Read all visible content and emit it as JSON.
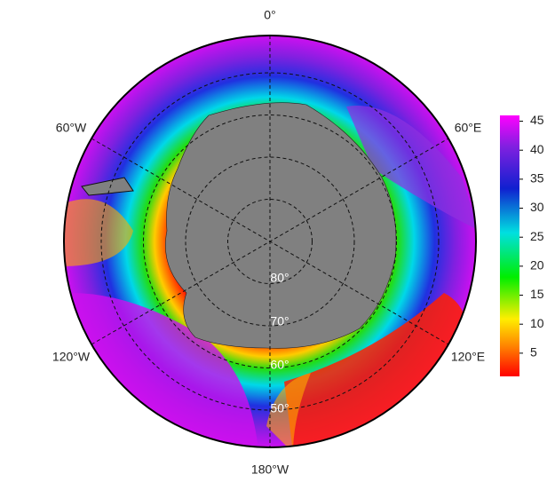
{
  "map": {
    "lon_labels": [
      "0°",
      "60°E",
      "120°E",
      "180°W",
      "120°W",
      "60°W"
    ],
    "lat_labels": [
      "80°",
      "70°",
      "60°",
      "50°"
    ]
  },
  "colorbar": {
    "lim": [
      1,
      46
    ],
    "ticks": [
      5,
      10,
      15,
      20,
      25,
      30,
      35,
      40,
      45
    ]
  }
}
